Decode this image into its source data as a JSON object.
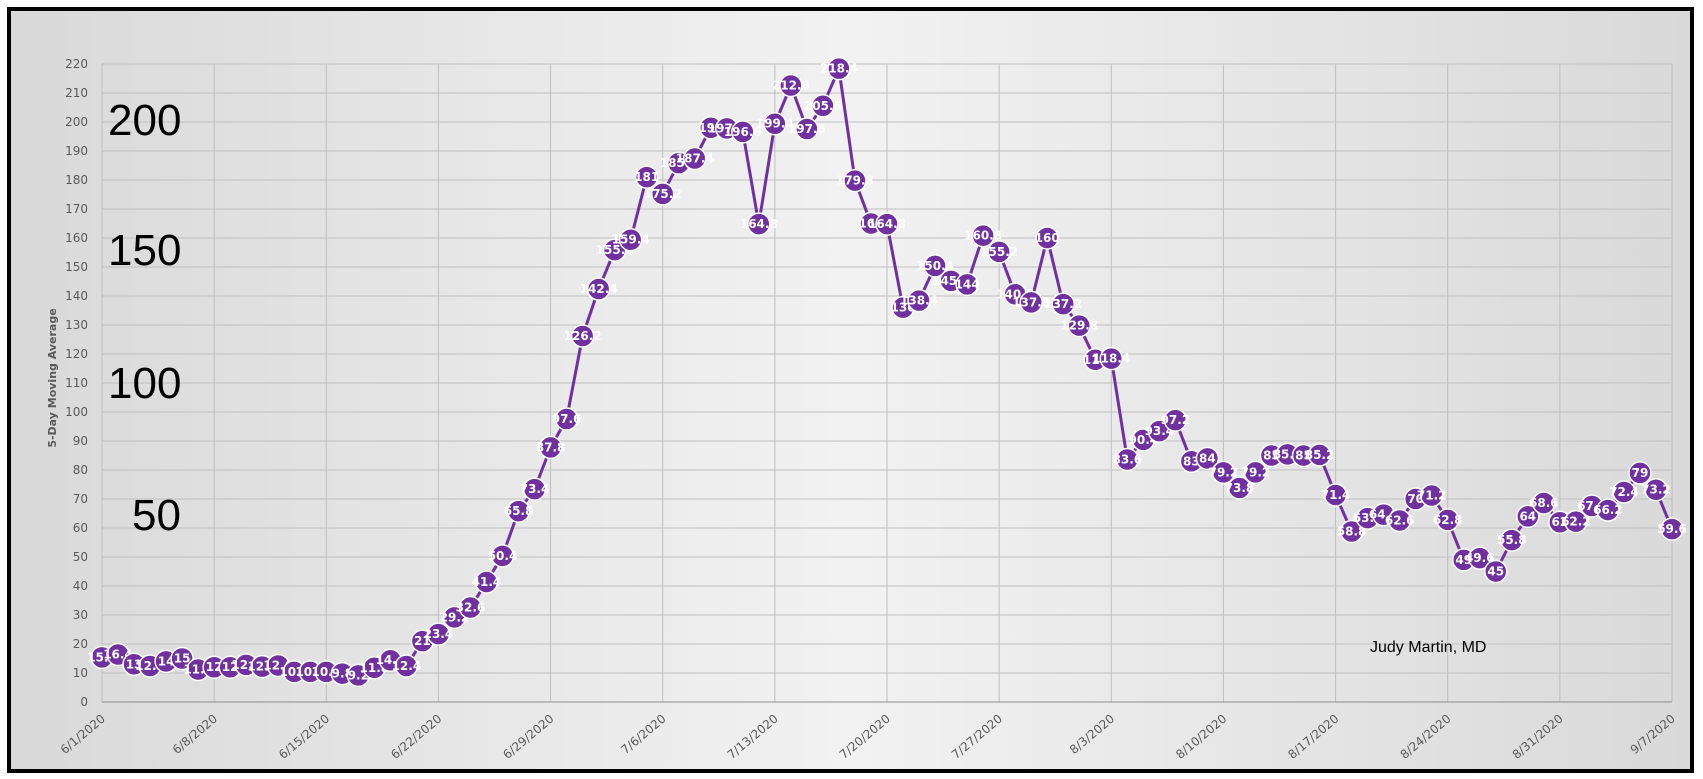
{
  "chart_data": {
    "type": "line",
    "ylabel": "5-Day Moving Average",
    "ylim": [
      0,
      220
    ],
    "ytick_step": 10,
    "grid": true,
    "line_color": "#7030A0",
    "x_start": "6/1/2020",
    "x_end": "9/7/2020",
    "x_ticks": [
      "6/1/2020",
      "6/8/2020",
      "6/15/2020",
      "6/22/2020",
      "6/29/2020",
      "7/6/2020",
      "7/13/2020",
      "7/20/2020",
      "7/27/2020",
      "8/3/2020",
      "8/10/2020",
      "8/17/2020",
      "8/24/2020",
      "8/31/2020",
      "9/7/2020"
    ],
    "big_labels": [
      "200",
      "150",
      "100",
      "50"
    ],
    "annotation": "Judy Martin, MD",
    "series": [
      {
        "points": [
          {
            "x": "6/1/2020",
            "y": 15.4,
            "label": "15.4"
          },
          {
            "x": "6/2/2020",
            "y": 16.4,
            "label": "16.4"
          },
          {
            "x": "6/3/2020",
            "y": 13,
            "label": "13"
          },
          {
            "x": "6/4/2020",
            "y": 12.4,
            "label": "12.4"
          },
          {
            "x": "6/5/2020",
            "y": 14,
            "label": "14"
          },
          {
            "x": "6/6/2020",
            "y": 15,
            "label": "15"
          },
          {
            "x": "6/7/2020",
            "y": 11.2,
            "label": "11.2"
          },
          {
            "x": "6/8/2020",
            "y": 12,
            "label": "12"
          },
          {
            "x": "6/9/2020",
            "y": 12,
            "label": "12"
          },
          {
            "x": "6/10/2020",
            "y": 12.8,
            "label": "12.8"
          },
          {
            "x": "6/11/2020",
            "y": 12.2,
            "label": "12.2"
          },
          {
            "x": "6/12/2020",
            "y": 12.6,
            "label": "12.6"
          },
          {
            "x": "6/13/2020",
            "y": 10.4,
            "label": "10.4"
          },
          {
            "x": "6/14/2020",
            "y": 10.4,
            "label": "10.4"
          },
          {
            "x": "6/15/2020",
            "y": 10.4,
            "label": "10.4"
          },
          {
            "x": "6/16/2020",
            "y": 9.8,
            "label": "9.8"
          },
          {
            "x": "6/17/2020",
            "y": 9.2,
            "label": "9.2"
          },
          {
            "x": "6/18/2020",
            "y": 11.8,
            "label": "11.8"
          },
          {
            "x": "6/19/2020",
            "y": 14.4,
            "label": "14.4"
          },
          {
            "x": "6/20/2020",
            "y": 12.4,
            "label": "12.4"
          },
          {
            "x": "6/21/2020",
            "y": 21,
            "label": "21"
          },
          {
            "x": "6/22/2020",
            "y": 23.4,
            "label": "23.4"
          },
          {
            "x": "6/23/2020",
            "y": 29.2,
            "label": "29.2"
          },
          {
            "x": "6/24/2020",
            "y": 32.6,
            "label": "32.6"
          },
          {
            "x": "6/25/2020",
            "y": 41.4,
            "label": "41.4"
          },
          {
            "x": "6/26/2020",
            "y": 50.4,
            "label": "50.4"
          },
          {
            "x": "6/27/2020",
            "y": 65.8,
            "label": "65.8"
          },
          {
            "x": "6/28/2020",
            "y": 73.4,
            "label": "73.4"
          },
          {
            "x": "6/29/2020",
            "y": 87.8,
            "label": "87.8"
          },
          {
            "x": "6/30/2020",
            "y": 97.6,
            "label": "97.6"
          },
          {
            "x": "7/1/2020",
            "y": 126.2,
            "label": "126.2"
          },
          {
            "x": "7/2/2020",
            "y": 142.4,
            "label": "142.4"
          },
          {
            "x": "7/3/2020",
            "y": 155.8,
            "label": "155.8"
          },
          {
            "x": "7/4/2020",
            "y": 159.4,
            "label": "159.4"
          },
          {
            "x": "7/5/2020",
            "y": 181,
            "label": "181"
          },
          {
            "x": "7/6/2020",
            "y": 175.2,
            "label": "175.2"
          },
          {
            "x": "7/7/2020",
            "y": 185.8,
            "label": "185.8"
          },
          {
            "x": "7/8/2020",
            "y": 187.4,
            "label": "187.4"
          },
          {
            "x": "7/9/2020",
            "y": 198,
            "label": "198"
          },
          {
            "x": "7/10/2020",
            "y": 197.8,
            "label": "197.8"
          },
          {
            "x": "7/11/2020",
            "y": 196.6,
            "label": "196.6"
          },
          {
            "x": "7/12/2020",
            "y": 164.8,
            "label": "164.8"
          },
          {
            "x": "7/13/2020",
            "y": 199.4,
            "label": "199.4"
          },
          {
            "x": "7/14/2020",
            "y": 212.6,
            "label": "212.6"
          },
          {
            "x": "7/15/2020",
            "y": 197.6,
            "label": "197.6"
          },
          {
            "x": "7/16/2020",
            "y": 205.6,
            "label": "205.6"
          },
          {
            "x": "7/17/2020",
            "y": 218.4,
            "label": "218.4"
          },
          {
            "x": "7/18/2020",
            "y": 179.8,
            "label": "179.8"
          },
          {
            "x": "7/19/2020",
            "y": 165,
            "label": "165"
          },
          {
            "x": "7/20/2020",
            "y": 164.8,
            "label": "164.8"
          },
          {
            "x": "7/21/2020",
            "y": 136,
            "label": "136"
          },
          {
            "x": "7/22/2020",
            "y": 138.4,
            "label": "138.4"
          },
          {
            "x": "7/23/2020",
            "y": 150.4,
            "label": "150.4"
          },
          {
            "x": "7/24/2020",
            "y": 145.2,
            "label": "145.2"
          },
          {
            "x": "7/25/2020",
            "y": 144,
            "label": "144"
          },
          {
            "x": "7/26/2020",
            "y": 160.8,
            "label": "160.8"
          },
          {
            "x": "7/27/2020",
            "y": 155.2,
            "label": "155.2"
          },
          {
            "x": "7/28/2020",
            "y": 140.6,
            "label": "140.6"
          },
          {
            "x": "7/29/2020",
            "y": 137.8,
            "label": "137.8"
          },
          {
            "x": "7/30/2020",
            "y": 160,
            "label": "160"
          },
          {
            "x": "7/31/2020",
            "y": 137.2,
            "label": "137.2"
          },
          {
            "x": "8/1/2020",
            "y": 129.8,
            "label": "129.8"
          },
          {
            "x": "8/2/2020",
            "y": 118,
            "label": "118"
          },
          {
            "x": "8/3/2020",
            "y": 118.4,
            "label": "118.4"
          },
          {
            "x": "8/4/2020",
            "y": 83.6,
            "label": "83.6"
          },
          {
            "x": "8/5/2020",
            "y": 90.4,
            "label": "90.4"
          },
          {
            "x": "8/6/2020",
            "y": 93.4,
            "label": "93.4"
          },
          {
            "x": "8/7/2020",
            "y": 97.2,
            "label": "97.2"
          },
          {
            "x": "8/8/2020",
            "y": 83,
            "label": "83"
          },
          {
            "x": "8/9/2020",
            "y": 84,
            "label": "84"
          },
          {
            "x": "8/10/2020",
            "y": 79.2,
            "label": "79.2"
          },
          {
            "x": "8/11/2020",
            "y": 73.8,
            "label": "73.8"
          },
          {
            "x": "8/12/2020",
            "y": 79.2,
            "label": "79.2"
          },
          {
            "x": "8/13/2020",
            "y": 85,
            "label": "85"
          },
          {
            "x": "8/14/2020",
            "y": 85.4,
            "label": "85.4"
          },
          {
            "x": "8/15/2020",
            "y": 85,
            "label": "85"
          },
          {
            "x": "8/16/2020",
            "y": 85.2,
            "label": "85.2"
          },
          {
            "x": "8/17/2020",
            "y": 71.4,
            "label": "71.4"
          },
          {
            "x": "8/18/2020",
            "y": 58.8,
            "label": "58.8"
          },
          {
            "x": "8/19/2020",
            "y": 63.4,
            "label": "63.4"
          },
          {
            "x": "8/20/2020",
            "y": 64.6,
            "label": "64.6"
          },
          {
            "x": "8/21/2020",
            "y": 62.6,
            "label": "62.6"
          },
          {
            "x": "8/22/2020",
            "y": 70,
            "label": "70"
          },
          {
            "x": "8/23/2020",
            "y": 71.2,
            "label": "71.2"
          },
          {
            "x": "8/24/2020",
            "y": 62.8,
            "label": "62.8"
          },
          {
            "x": "8/25/2020",
            "y": 49,
            "label": "49"
          },
          {
            "x": "8/26/2020",
            "y": 49.6,
            "label": "49.6"
          },
          {
            "x": "8/27/2020",
            "y": 45,
            "label": "45"
          },
          {
            "x": "8/28/2020",
            "y": 55.8,
            "label": "55.8"
          },
          {
            "x": "8/29/2020",
            "y": 64,
            "label": "64"
          },
          {
            "x": "8/30/2020",
            "y": 68.6,
            "label": "68.6"
          },
          {
            "x": "8/31/2020",
            "y": 62,
            "label": "62"
          },
          {
            "x": "9/1/2020",
            "y": 62.2,
            "label": "62.2"
          },
          {
            "x": "9/2/2020",
            "y": 67.6,
            "label": "67.6"
          },
          {
            "x": "9/3/2020",
            "y": 66.2,
            "label": "66.2"
          },
          {
            "x": "9/4/2020",
            "y": 72.4,
            "label": "72.4"
          },
          {
            "x": "9/5/2020",
            "y": 79,
            "label": "79"
          },
          {
            "x": "9/6/2020",
            "y": 73.2,
            "label": "73.2"
          },
          {
            "x": "9/7/2020",
            "y": 59.6,
            "label": "59.6"
          }
        ]
      }
    ]
  }
}
